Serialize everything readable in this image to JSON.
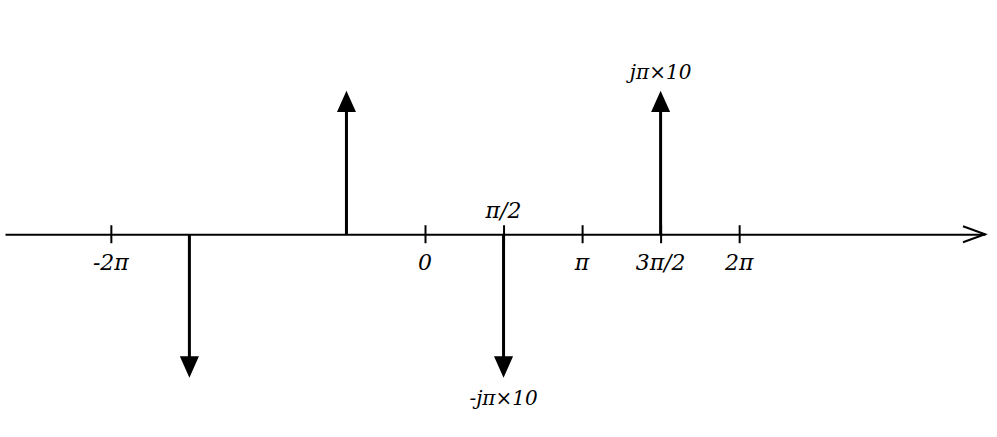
{
  "chart_data": {
    "type": "stem",
    "x": [
      -4.712,
      -1.571,
      1.571,
      4.712
    ],
    "values": [
      -31.4,
      31.4,
      -31.4,
      31.4
    ],
    "color": "#000000",
    "marker": "arrow",
    "xlim": [
      -8.4,
      11.2
    ],
    "xticks": [
      {
        "value": -6.283,
        "label": "-2π"
      },
      {
        "value": 0,
        "label": "0"
      },
      {
        "value": 1.571,
        "label": "π/2"
      },
      {
        "value": 3.142,
        "label": "π"
      },
      {
        "value": 4.712,
        "label": "3π/2"
      },
      {
        "value": 6.283,
        "label": "2π"
      }
    ],
    "ylim": [
      -44,
      51
    ],
    "tick_labels": "x",
    "grid": false,
    "annotations": [
      {
        "text": "jπ×10",
        "x": 4.712
      },
      {
        "text": "-jπ×10",
        "x": 1.571
      }
    ]
  }
}
